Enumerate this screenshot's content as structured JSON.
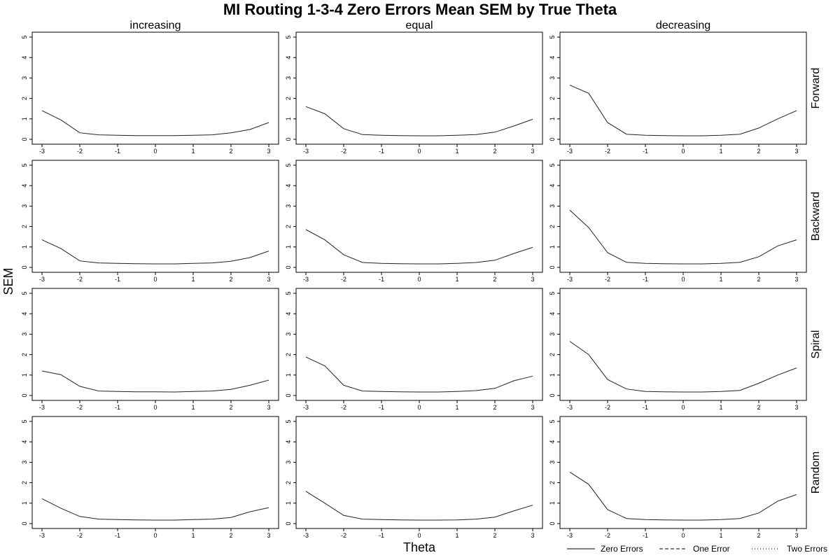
{
  "chart_data": {
    "type": "line",
    "title": "MI Routing 1-3-4 Zero Errors Mean SEM by True Theta",
    "xlabel": "Theta",
    "ylabel": "SEM",
    "columns": [
      "increasing",
      "equal",
      "decreasing"
    ],
    "rows": [
      "Forward",
      "Backward",
      "Spiral",
      "Random"
    ],
    "x": [
      -3,
      -2.5,
      -2,
      -1.5,
      -1,
      -0.5,
      0,
      0.5,
      1,
      1.5,
      2,
      2.5,
      3
    ],
    "xticks": [
      -3,
      -2,
      -1,
      0,
      1,
      2,
      3
    ],
    "xlim": [
      -3,
      3
    ],
    "yticks": [
      0,
      1,
      2,
      3,
      4,
      5
    ],
    "ylim": [
      0,
      5
    ],
    "grid": false,
    "legend_position": "bottom-right",
    "legend": [
      {
        "label": "Zero Errors",
        "style": "solid"
      },
      {
        "label": "One Error",
        "style": "dashed"
      },
      {
        "label": "Two Errors",
        "style": "dotted"
      }
    ],
    "panels": [
      {
        "row": "Forward",
        "column": "increasing",
        "series": "Zero Errors",
        "values": [
          1.4,
          0.95,
          0.32,
          0.22,
          0.2,
          0.18,
          0.18,
          0.18,
          0.2,
          0.22,
          0.32,
          0.48,
          0.82
        ]
      },
      {
        "row": "Forward",
        "column": "equal",
        "series": "Zero Errors",
        "values": [
          1.6,
          1.25,
          0.52,
          0.23,
          0.2,
          0.18,
          0.17,
          0.17,
          0.2,
          0.23,
          0.35,
          0.65,
          0.98
        ]
      },
      {
        "row": "Forward",
        "column": "decreasing",
        "series": "Zero Errors",
        "values": [
          2.65,
          2.25,
          0.82,
          0.25,
          0.2,
          0.18,
          0.17,
          0.17,
          0.2,
          0.25,
          0.55,
          1.0,
          1.4
        ]
      },
      {
        "row": "Backward",
        "column": "increasing",
        "series": "Zero Errors",
        "values": [
          1.35,
          0.92,
          0.32,
          0.22,
          0.2,
          0.18,
          0.17,
          0.17,
          0.2,
          0.22,
          0.3,
          0.48,
          0.8
        ]
      },
      {
        "row": "Backward",
        "column": "equal",
        "series": "Zero Errors",
        "values": [
          1.85,
          1.35,
          0.62,
          0.24,
          0.2,
          0.18,
          0.17,
          0.17,
          0.2,
          0.24,
          0.35,
          0.68,
          0.98
        ]
      },
      {
        "row": "Backward",
        "column": "decreasing",
        "series": "Zero Errors",
        "values": [
          2.8,
          1.95,
          0.72,
          0.25,
          0.2,
          0.18,
          0.17,
          0.17,
          0.2,
          0.25,
          0.52,
          1.05,
          1.35
        ]
      },
      {
        "row": "Spiral",
        "column": "increasing",
        "series": "Zero Errors",
        "values": [
          1.2,
          1.02,
          0.45,
          0.22,
          0.2,
          0.18,
          0.18,
          0.17,
          0.2,
          0.22,
          0.3,
          0.5,
          0.75
        ]
      },
      {
        "row": "Spiral",
        "column": "equal",
        "series": "Zero Errors",
        "values": [
          1.88,
          1.45,
          0.5,
          0.22,
          0.2,
          0.18,
          0.17,
          0.17,
          0.2,
          0.24,
          0.35,
          0.72,
          0.95
        ]
      },
      {
        "row": "Spiral",
        "column": "decreasing",
        "series": "Zero Errors",
        "values": [
          2.65,
          2.0,
          0.78,
          0.32,
          0.2,
          0.18,
          0.17,
          0.17,
          0.2,
          0.25,
          0.6,
          1.0,
          1.35
        ]
      },
      {
        "row": "Random",
        "column": "increasing",
        "series": "Zero Errors",
        "values": [
          1.22,
          0.75,
          0.35,
          0.22,
          0.2,
          0.18,
          0.17,
          0.17,
          0.2,
          0.22,
          0.3,
          0.58,
          0.78
        ]
      },
      {
        "row": "Random",
        "column": "equal",
        "series": "Zero Errors",
        "values": [
          1.58,
          1.0,
          0.4,
          0.22,
          0.2,
          0.18,
          0.17,
          0.17,
          0.18,
          0.22,
          0.32,
          0.62,
          0.9
        ]
      },
      {
        "row": "Random",
        "column": "decreasing",
        "series": "Zero Errors",
        "values": [
          2.52,
          1.92,
          0.68,
          0.25,
          0.2,
          0.18,
          0.17,
          0.17,
          0.2,
          0.25,
          0.52,
          1.1,
          1.42
        ]
      }
    ]
  }
}
